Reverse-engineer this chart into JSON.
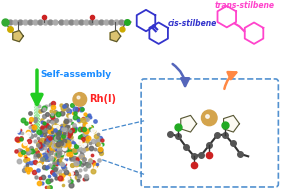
{
  "title": "",
  "background_color": "#ffffff",
  "self_assembly_text": "Self-assembly",
  "self_assembly_color": "#1a8cff",
  "rh_text": "Rh(I)",
  "rh_color": "#ff2222",
  "cis_text": "cis-stilbene",
  "cis_color": "#3333cc",
  "trans_text": "trans-stilbene",
  "trans_color": "#ff44cc",
  "arrow_down_color": "#22cc22",
  "arrow_curve_blue": "#5566cc",
  "arrow_curve_orange": "#ff8844",
  "sphere_color": "#d4a44c",
  "dashed_box_color": "#4488cc",
  "figsize": [
    2.88,
    1.89
  ],
  "dpi": 100
}
